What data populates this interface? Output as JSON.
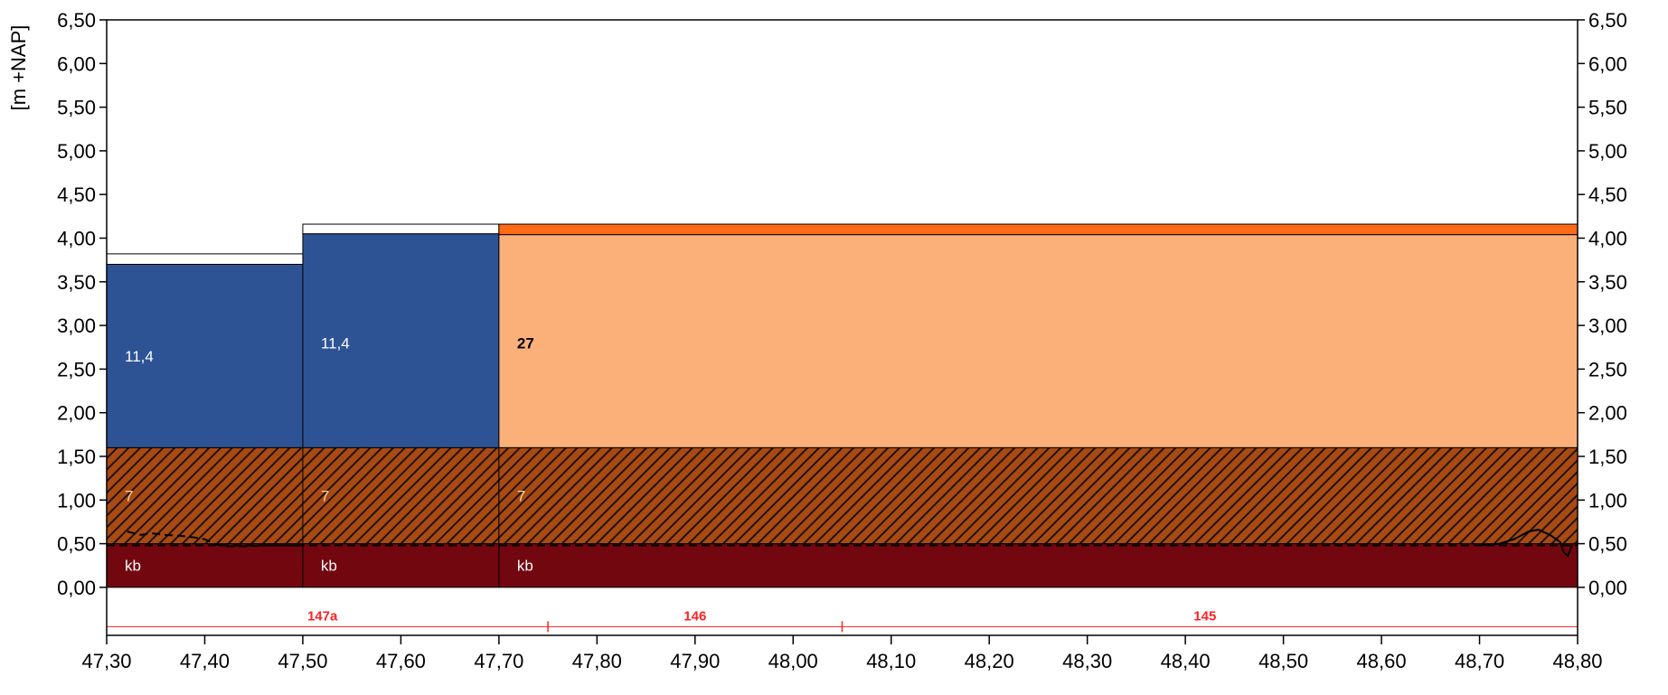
{
  "chart_data": {
    "type": "area",
    "title": "",
    "ylabel": "[m +NAP]",
    "xlabel": "",
    "xlim": [
      47.3,
      48.8
    ],
    "ylim": [
      -0.55,
      6.5
    ],
    "x_ticks": [
      "47,30",
      "47,40",
      "47,50",
      "47,60",
      "47,70",
      "47,80",
      "47,90",
      "48,00",
      "48,10",
      "48,20",
      "48,30",
      "48,40",
      "48,50",
      "48,60",
      "48,70",
      "48,80"
    ],
    "x_tick_values": [
      47.3,
      47.4,
      47.5,
      47.6,
      47.7,
      47.8,
      47.9,
      48.0,
      48.1,
      48.2,
      48.3,
      48.4,
      48.5,
      48.6,
      48.7,
      48.8
    ],
    "y_ticks": [
      "0,00",
      "0,50",
      "1,00",
      "1,50",
      "2,00",
      "2,50",
      "3,00",
      "3,50",
      "4,00",
      "4,50",
      "5,00",
      "5,50",
      "6,00",
      "6,50"
    ],
    "y_tick_values": [
      0,
      0.5,
      1.0,
      1.5,
      2.0,
      2.5,
      3.0,
      3.5,
      4.0,
      4.5,
      5.0,
      5.5,
      6.0,
      6.5
    ],
    "colors": {
      "blue": "#2e5395",
      "salmon": "#fbb07a",
      "orange": "#ff6a14",
      "hatch_bg": "#a94a12",
      "hatch_line": "#1e1208",
      "kb": "#730710",
      "red_text": "#ff2222",
      "label_white": "#ffffff",
      "label_cream": "#f2d6a0"
    },
    "layers": [
      {
        "label": "kb",
        "x0": 47.3,
        "x1": 47.5,
        "y0": 0.0,
        "y1": 0.5,
        "fill": "kb",
        "label_color": "label_white"
      },
      {
        "label": "kb",
        "x0": 47.5,
        "x1": 47.7,
        "y0": 0.0,
        "y1": 0.5,
        "fill": "kb",
        "label_color": "label_white"
      },
      {
        "label": "kb",
        "x0": 47.7,
        "x1": 48.8,
        "y0": 0.0,
        "y1": 0.5,
        "fill": "kb",
        "label_color": "label_white"
      },
      {
        "label": "7",
        "x0": 47.3,
        "x1": 47.5,
        "y0": 0.5,
        "y1": 1.6,
        "fill": "hatch",
        "label_color": "label_cream"
      },
      {
        "label": "7",
        "x0": 47.5,
        "x1": 47.7,
        "y0": 0.5,
        "y1": 1.6,
        "fill": "hatch",
        "label_color": "label_cream"
      },
      {
        "label": "7",
        "x0": 47.7,
        "x1": 48.8,
        "y0": 0.5,
        "y1": 1.6,
        "fill": "hatch",
        "label_color": "label_cream"
      },
      {
        "label": "11,4",
        "x0": 47.3,
        "x1": 47.5,
        "y0": 1.6,
        "y1": 3.7,
        "fill": "blue",
        "label_color": "label_white"
      },
      {
        "label": "11,4",
        "x0": 47.5,
        "x1": 47.7,
        "y0": 1.6,
        "y1": 4.05,
        "fill": "blue",
        "label_color": "label_white"
      },
      {
        "label": "27",
        "x0": 47.7,
        "x1": 48.8,
        "y0": 1.6,
        "y1": 4.04,
        "fill": "salmon",
        "label_color": "label_dark"
      }
    ],
    "top_layers": [
      {
        "x0": 47.3,
        "x1": 47.5,
        "y0": 3.7,
        "y1": 3.82,
        "fill": "white"
      },
      {
        "x0": 47.5,
        "x1": 47.7,
        "y0": 4.05,
        "y1": 4.16,
        "fill": "white"
      },
      {
        "x0": 47.7,
        "x1": 48.8,
        "y0": 4.04,
        "y1": 4.16,
        "fill": "orange"
      }
    ],
    "label_y": {
      "kb": 0.25,
      "7": 1.05,
      "11,4_a": 2.65,
      "11,4_b": 2.8,
      "27": 2.8
    },
    "dashed_line": {
      "y": 0.48
    },
    "groundwater_line": [
      [
        47.321,
        0.64
      ],
      [
        47.335,
        0.6
      ],
      [
        47.345,
        0.62
      ],
      [
        47.36,
        0.6
      ],
      [
        47.375,
        0.59
      ],
      [
        47.39,
        0.57
      ],
      [
        47.4,
        0.55
      ],
      [
        47.412,
        0.49
      ],
      [
        47.42,
        0.47
      ],
      [
        47.44,
        0.47
      ],
      [
        47.46,
        0.48
      ],
      [
        47.5,
        0.48
      ],
      [
        48.7,
        0.48
      ],
      [
        48.72,
        0.5
      ],
      [
        48.735,
        0.55
      ],
      [
        48.75,
        0.64
      ],
      [
        48.76,
        0.66
      ],
      [
        48.772,
        0.6
      ],
      [
        48.782,
        0.52
      ],
      [
        48.786,
        0.4
      ],
      [
        48.79,
        0.36
      ],
      [
        48.795,
        0.5
      ]
    ],
    "profile_labels": [
      {
        "text": "147a",
        "x": 47.52
      },
      {
        "text": "146",
        "x": 47.9
      },
      {
        "text": "145",
        "x": 48.42
      }
    ],
    "profile_ticks": [
      47.75,
      48.05
    ],
    "profile_line_y": -0.45,
    "profile_label_y": -0.33,
    "grid": false,
    "legend": "none"
  }
}
